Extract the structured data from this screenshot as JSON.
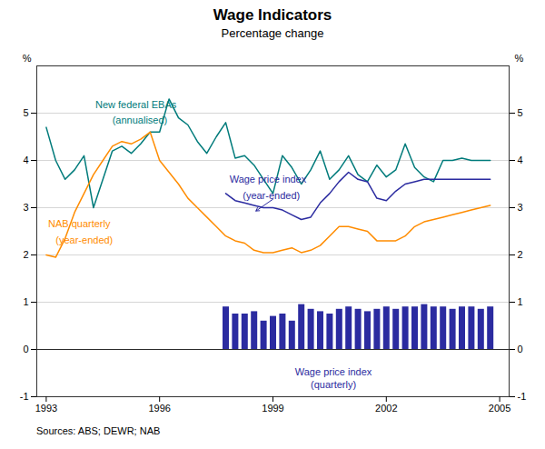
{
  "chart_data": {
    "type": "line",
    "title": "Wage Indicators",
    "subtitle": "Percentage change",
    "source": "Sources: ABS; DEWR; NAB",
    "ylabel": "%",
    "y2label": "%",
    "xlim": [
      1992.75,
      2005.25
    ],
    "xticks": [
      1993,
      1996,
      1999,
      2002,
      2005
    ],
    "ylim": [
      -1,
      6
    ],
    "yticks": [
      -1,
      0,
      1,
      2,
      3,
      4,
      5
    ],
    "y2lim": [
      -1,
      6
    ],
    "y2ticks": [
      -1,
      0,
      1,
      2,
      3,
      4,
      5
    ],
    "grid": true,
    "series": [
      {
        "type": "line",
        "color": "#007B7B",
        "x": [
          1993.0,
          1993.25,
          1993.5,
          1993.75,
          1994.0,
          1994.25,
          1994.5,
          1994.75,
          1995.0,
          1995.25,
          1995.5,
          1995.75,
          1996.0,
          1996.25,
          1996.5,
          1996.75,
          1997.0,
          1997.25,
          1997.5,
          1997.75,
          1998.0,
          1998.25,
          1998.5,
          1998.75,
          1999.0,
          1999.25,
          1999.5,
          1999.75,
          2000.0,
          2000.25,
          2000.5,
          2000.75,
          2001.0,
          2001.25,
          2001.5,
          2001.75,
          2002.0,
          2002.25,
          2002.5,
          2002.75,
          2003.0,
          2003.25,
          2003.5,
          2003.75,
          2004.0,
          2004.25,
          2004.5,
          2004.75
        ],
        "values": [
          4.7,
          4.0,
          3.6,
          3.8,
          4.1,
          3.0,
          3.6,
          4.2,
          4.3,
          4.15,
          4.35,
          4.6,
          4.6,
          5.3,
          4.9,
          4.75,
          4.4,
          4.15,
          4.5,
          4.8,
          4.05,
          4.1,
          3.9,
          3.6,
          3.3,
          4.1,
          3.85,
          3.5,
          3.8,
          4.2,
          3.6,
          3.8,
          4.1,
          3.7,
          3.55,
          3.9,
          3.65,
          3.8,
          4.35,
          3.85,
          3.65,
          3.55,
          4.0,
          4.0,
          4.05,
          4.0,
          4.0,
          4.0
        ]
      },
      {
        "type": "line",
        "color": "#FF8C00",
        "x": [
          1993.0,
          1993.25,
          1993.5,
          1993.75,
          1994.0,
          1994.25,
          1994.5,
          1994.75,
          1995.0,
          1995.25,
          1995.5,
          1995.75,
          1996.0,
          1996.25,
          1996.5,
          1996.75,
          1997.0,
          1997.25,
          1997.5,
          1997.75,
          1998.0,
          1998.25,
          1998.5,
          1998.75,
          1999.0,
          1999.25,
          1999.5,
          1999.75,
          2000.0,
          2000.25,
          2000.5,
          2000.75,
          2001.0,
          2001.25,
          2001.5,
          2001.75,
          2002.0,
          2002.25,
          2002.5,
          2002.75,
          2003.0,
          2003.25,
          2003.5,
          2003.75,
          2004.0,
          2004.25,
          2004.5,
          2004.75
        ],
        "values": [
          2.0,
          1.95,
          2.35,
          2.9,
          3.3,
          3.7,
          4.0,
          4.3,
          4.4,
          4.35,
          4.45,
          4.6,
          4.0,
          3.75,
          3.5,
          3.2,
          3.0,
          2.8,
          2.6,
          2.4,
          2.3,
          2.25,
          2.1,
          2.05,
          2.05,
          2.1,
          2.15,
          2.05,
          2.1,
          2.2,
          2.4,
          2.6,
          2.6,
          2.55,
          2.5,
          2.3,
          2.3,
          2.3,
          2.4,
          2.6,
          2.7,
          2.75,
          2.8,
          2.85,
          2.9,
          2.95,
          3.0,
          3.05
        ]
      },
      {
        "type": "line",
        "color": "#2B2BA0",
        "x": [
          1997.75,
          1998.0,
          1998.25,
          1998.5,
          1998.75,
          1999.0,
          1999.25,
          1999.5,
          1999.75,
          2000.0,
          2000.25,
          2000.5,
          2000.75,
          2001.0,
          2001.25,
          2001.5,
          2001.75,
          2002.0,
          2002.25,
          2002.5,
          2002.75,
          2003.0,
          2003.25,
          2003.5,
          2003.75,
          2004.0,
          2004.25,
          2004.5,
          2004.75
        ],
        "values": [
          3.3,
          3.15,
          3.1,
          3.05,
          3.0,
          3.0,
          2.95,
          2.85,
          2.75,
          2.8,
          3.1,
          3.3,
          3.55,
          3.75,
          3.6,
          3.55,
          3.2,
          3.15,
          3.35,
          3.5,
          3.55,
          3.6,
          3.6,
          3.6,
          3.6,
          3.6,
          3.6,
          3.6,
          3.6
        ]
      },
      {
        "type": "bar",
        "color": "#2B2BA0",
        "x": [
          1997.75,
          1998.0,
          1998.25,
          1998.5,
          1998.75,
          1999.0,
          1999.25,
          1999.5,
          1999.75,
          2000.0,
          2000.25,
          2000.5,
          2000.75,
          2001.0,
          2001.25,
          2001.5,
          2001.75,
          2002.0,
          2002.25,
          2002.5,
          2002.75,
          2003.0,
          2003.25,
          2003.5,
          2003.75,
          2004.0,
          2004.25,
          2004.5,
          2004.75
        ],
        "values": [
          0.9,
          0.75,
          0.75,
          0.8,
          0.6,
          0.7,
          0.75,
          0.6,
          0.95,
          0.85,
          0.8,
          0.75,
          0.85,
          0.9,
          0.85,
          0.8,
          0.85,
          0.9,
          0.85,
          0.9,
          0.9,
          0.95,
          0.9,
          0.9,
          0.85,
          0.9,
          0.9,
          0.85,
          0.9
        ]
      }
    ],
    "annotations": [
      {
        "text": "New federal EBAs",
        "x": 1994.3,
        "y": 5.1,
        "color": "#007B7B"
      },
      {
        "text": "(annualised)",
        "x": 1994.75,
        "y": 4.77,
        "color": "#007B7B"
      },
      {
        "text": "NAB quarterly",
        "x": 1993.05,
        "y": 2.58,
        "color": "#FF8C00"
      },
      {
        "text": "(year-ended)",
        "x": 1993.25,
        "y": 2.25,
        "color": "#FF8C00"
      },
      {
        "text": "Wage price index",
        "x": 1997.85,
        "y": 3.52,
        "color": "#2B2BA0"
      },
      {
        "text": "(year-ended)",
        "x": 1998.2,
        "y": 3.19,
        "color": "#2B2BA0"
      },
      {
        "text": "Wage price index",
        "x": 2000.6,
        "y": -0.55,
        "color": "#2B2BA0",
        "align": "center"
      },
      {
        "text": "(quarterly)",
        "x": 2000.6,
        "y": -0.82,
        "color": "#2B2BA0",
        "align": "center"
      }
    ],
    "arrows": [
      {
        "x1": 1999.0,
        "y1": 3.18,
        "x2": 1998.55,
        "y2": 2.93,
        "color": "#2B2BA0"
      }
    ]
  }
}
